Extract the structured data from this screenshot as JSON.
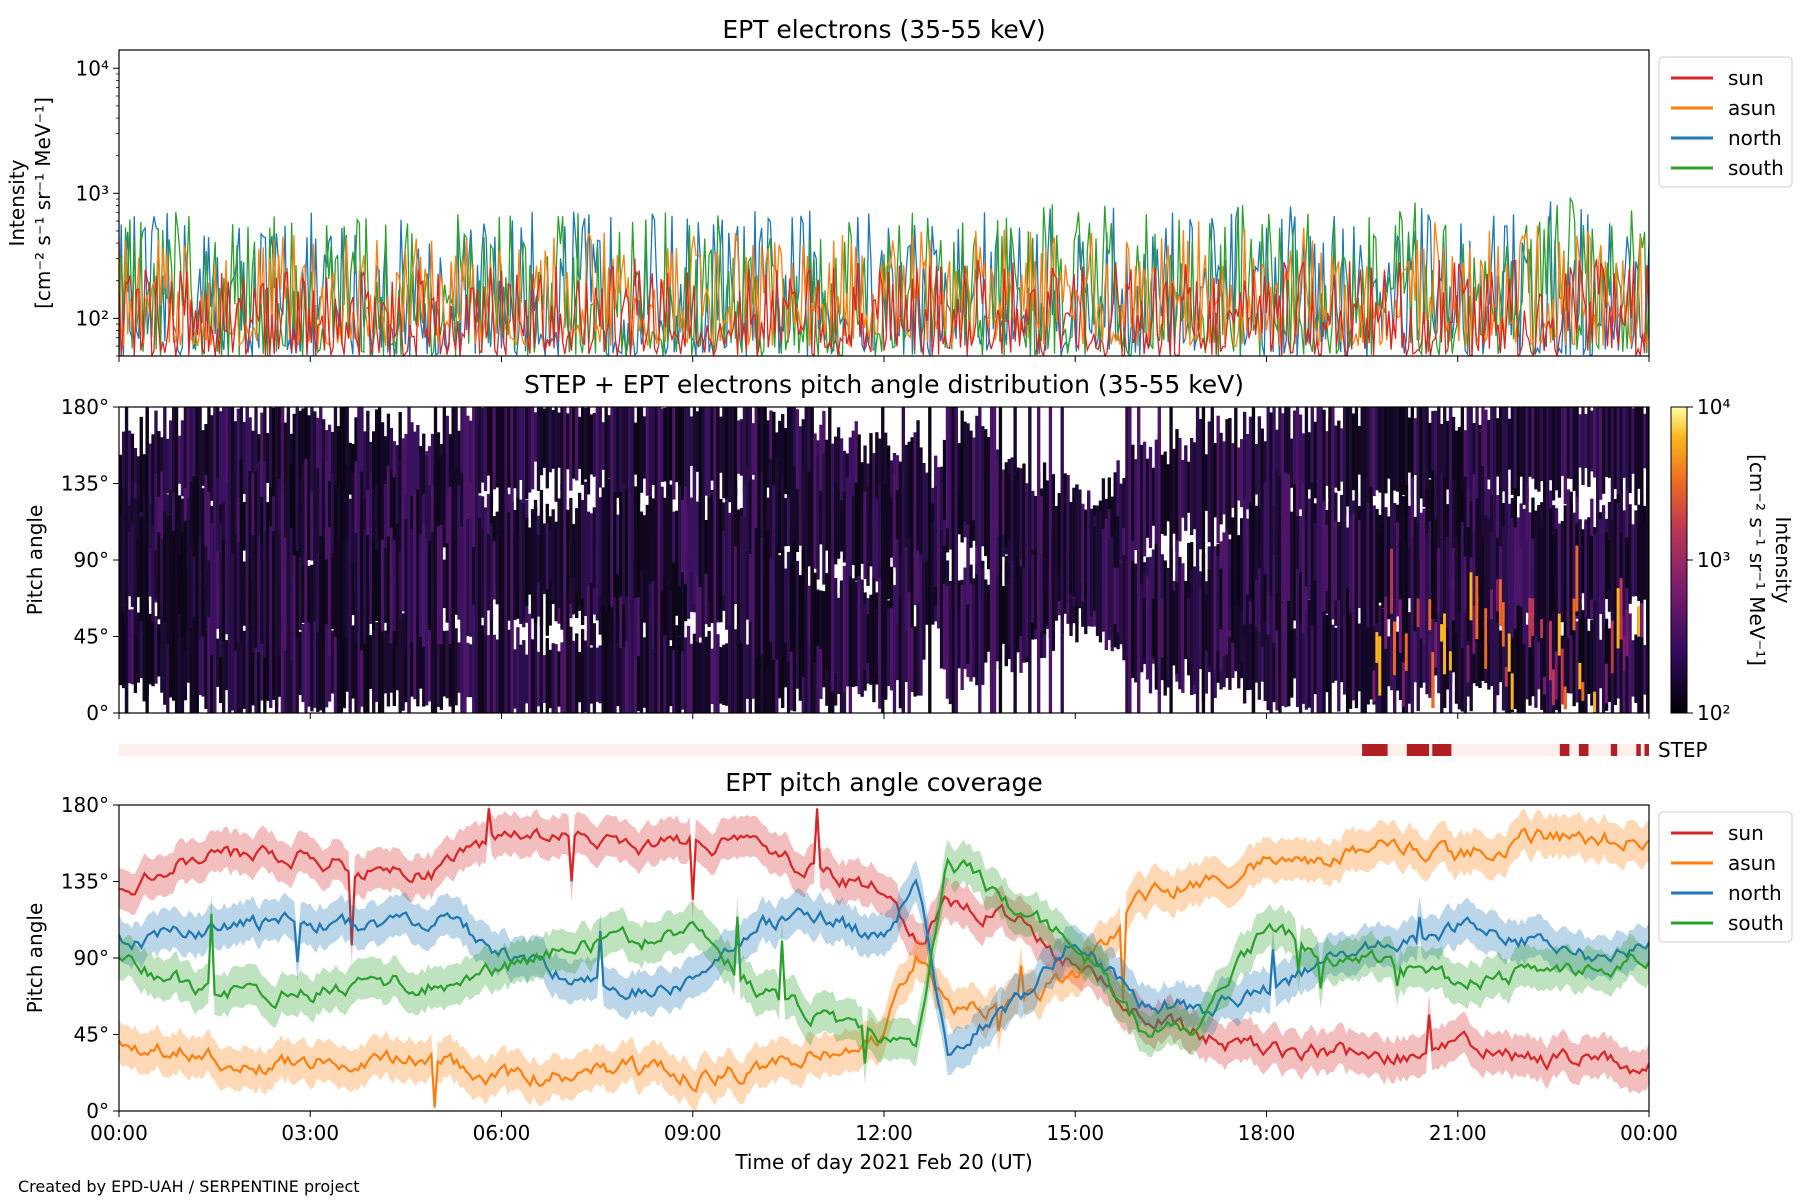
{
  "chart_data": [
    {
      "type": "line",
      "title": "EPT electrons (35-55 keV)",
      "ylabel": [
        "Intensity",
        "[cm⁻² s⁻¹ sr⁻¹ MeV⁻¹]"
      ],
      "yscale": "log",
      "ylim": [
        50,
        14000
      ],
      "yticks": [
        100,
        1000,
        10000
      ],
      "ytick_labels": [
        "10²",
        "10³",
        "10⁴"
      ],
      "legend_placement": "upper-right-outside",
      "series": [
        {
          "name": "sun",
          "color": "#d62728",
          "typical_range": [
            50,
            250
          ]
        },
        {
          "name": "asun",
          "color": "#ff7f0e",
          "typical_range": [
            60,
            450
          ]
        },
        {
          "name": "north",
          "color": "#1f77b4",
          "typical_range": [
            50,
            700
          ]
        },
        {
          "name": "south",
          "color": "#2ca02c",
          "typical_range": [
            50,
            700
          ]
        }
      ]
    },
    {
      "type": "heatmap",
      "title": "STEP + EPT electrons pitch angle distribution (35-55 keV)",
      "ylabel": "Pitch angle",
      "ylim": [
        0,
        180
      ],
      "yticks": [
        0,
        45,
        90,
        135,
        180
      ],
      "ytick_labels": [
        "0°",
        "45°",
        "90°",
        "135°",
        "180°"
      ],
      "colorbar": {
        "label": "Intensity",
        "units": "[cm⁻² s⁻¹ sr⁻¹ MeV⁻¹]",
        "scale": "log",
        "range": [
          100,
          10000
        ],
        "tick_labels": [
          "10²",
          "10³",
          "10⁴"
        ],
        "colormap": "inferno"
      }
    },
    {
      "type": "timeline",
      "label": "STEP",
      "background_color": "#fdf0ec",
      "active_color": "#b11f24",
      "active_intervals_hours": [
        [
          19.5,
          19.9
        ],
        [
          20.2,
          20.55
        ],
        [
          20.6,
          20.9
        ],
        [
          22.6,
          22.75
        ],
        [
          22.9,
          23.05
        ],
        [
          23.4,
          23.5
        ],
        [
          23.8,
          23.87
        ],
        [
          23.93,
          24.0
        ]
      ]
    },
    {
      "type": "line",
      "title": "EPT pitch angle coverage",
      "ylabel": "Pitch angle",
      "ylim": [
        0,
        180
      ],
      "yticks": [
        0,
        45,
        90,
        135,
        180
      ],
      "ytick_labels": [
        "0°",
        "45°",
        "90°",
        "135°",
        "180°"
      ],
      "legend_placement": "upper-right-outside",
      "shaded_band": true,
      "series": [
        {
          "name": "sun",
          "color": "#d62728",
          "x": [
            0,
            1,
            2,
            3,
            4,
            5,
            6,
            7,
            8,
            9,
            10,
            11,
            12,
            12.5,
            13,
            14,
            15,
            16,
            17,
            18,
            19,
            20,
            21,
            22,
            23,
            24
          ],
          "values": [
            130,
            150,
            150,
            150,
            140,
            140,
            165,
            160,
            155,
            160,
            155,
            140,
            130,
            100,
            120,
            115,
            85,
            60,
            45,
            35,
            35,
            30,
            40,
            30,
            30,
            25
          ]
        },
        {
          "name": "asun",
          "color": "#ff7f0e",
          "x": [
            0,
            1,
            2,
            3,
            4,
            5,
            6,
            7,
            8,
            9,
            10,
            11,
            12,
            12.5,
            13,
            14,
            15,
            16,
            17,
            18,
            19,
            20,
            21,
            22,
            23,
            24
          ],
          "values": [
            40,
            35,
            25,
            30,
            30,
            30,
            20,
            20,
            25,
            20,
            25,
            35,
            45,
            90,
            60,
            60,
            80,
            125,
            135,
            145,
            150,
            160,
            150,
            160,
            160,
            160
          ]
        },
        {
          "name": "north",
          "color": "#1f77b4",
          "x": [
            0,
            1,
            2,
            3,
            4,
            5,
            6,
            7,
            8,
            9,
            10,
            11,
            12,
            12.5,
            13,
            14,
            15,
            16,
            17,
            18,
            19,
            20,
            21,
            22,
            23,
            24
          ],
          "values": [
            100,
            105,
            110,
            110,
            110,
            115,
            95,
            80,
            70,
            75,
            110,
            115,
            100,
            140,
            40,
            60,
            100,
            65,
            60,
            70,
            90,
            95,
            110,
            100,
            90,
            95
          ]
        },
        {
          "name": "south",
          "color": "#2ca02c",
          "x": [
            0,
            1,
            2,
            3,
            4,
            5,
            6,
            7,
            8,
            9,
            10,
            11,
            12,
            12.5,
            13,
            14,
            15,
            16,
            17,
            18,
            19,
            20,
            21,
            22,
            23,
            24
          ],
          "values": [
            90,
            75,
            70,
            70,
            75,
            75,
            85,
            95,
            100,
            105,
            70,
            55,
            40,
            30,
            150,
            120,
            100,
            50,
            50,
            110,
            90,
            85,
            75,
            80,
            85,
            90
          ]
        }
      ]
    }
  ],
  "xaxis": {
    "label": "Time of day 2021 Feb 20 (UT)",
    "range_hours": [
      0,
      24
    ],
    "tick_hours": [
      0,
      3,
      6,
      9,
      12,
      15,
      18,
      21,
      24
    ],
    "tick_labels": [
      "00:00",
      "03:00",
      "06:00",
      "09:00",
      "12:00",
      "15:00",
      "18:00",
      "21:00",
      "00:00"
    ]
  },
  "credit": "Created by EPD-UAH / SERPENTINE project"
}
